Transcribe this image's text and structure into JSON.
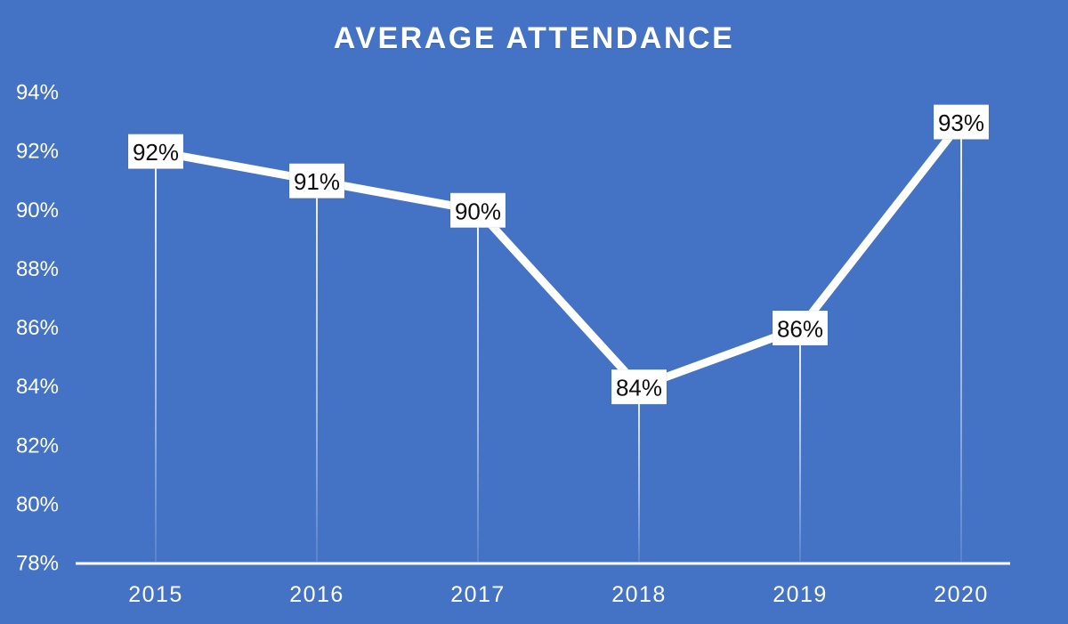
{
  "chart_data": {
    "type": "line",
    "title": "AVERAGE ATTENDANCE",
    "categories": [
      "2015",
      "2016",
      "2017",
      "2018",
      "2019",
      "2020"
    ],
    "series": [
      {
        "name": "Average Attendance",
        "values": [
          92,
          91,
          90,
          84,
          86,
          93
        ]
      }
    ],
    "data_labels": [
      "92%",
      "91%",
      "90%",
      "84%",
      "86%",
      "93%"
    ],
    "xlabel": "",
    "ylabel": "",
    "ylim": [
      78,
      94
    ],
    "ytick_step": 2,
    "ytick_labels": [
      "78%",
      "80%",
      "82%",
      "84%",
      "86%",
      "88%",
      "90%",
      "92%",
      "94%"
    ],
    "grid": false,
    "legend_position": "none",
    "colors": {
      "background": "#4472C4",
      "series_line": "#FFFFFF",
      "axis_line": "#FFFFFF",
      "tick_text": "#FFFFFF",
      "label_box_bg": "#FFFFFF",
      "label_text": "#0D0D0D"
    }
  }
}
